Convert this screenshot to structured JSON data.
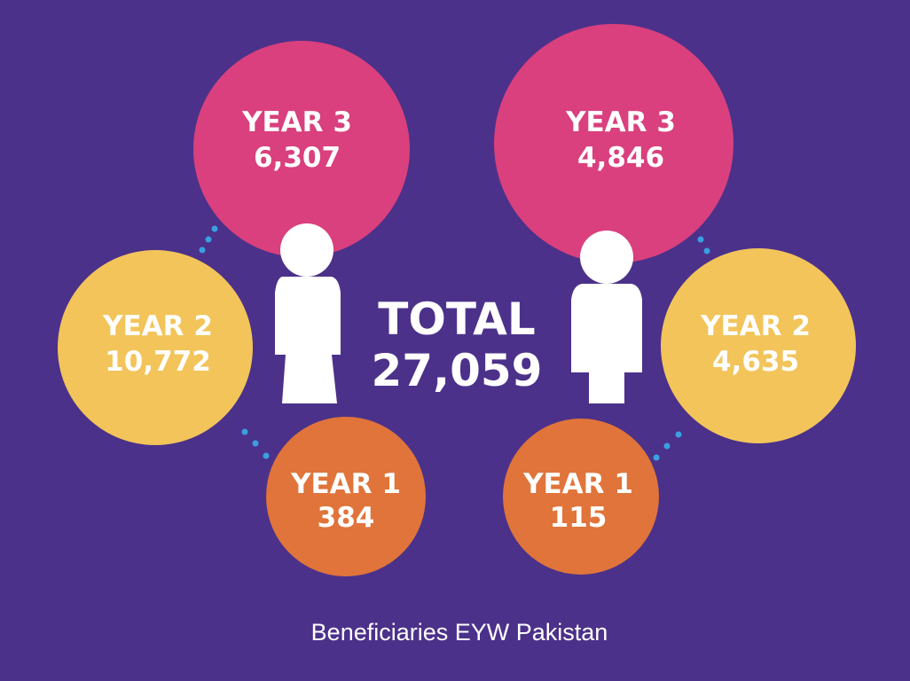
{
  "groups": [
    {
      "circles": [
        {
          "label": "YEAR 3",
          "value": "6,307"
        },
        {
          "label": "YEAR 2",
          "value": "10,772"
        },
        {
          "label": "YEAR 1",
          "value": "384"
        }
      ]
    },
    {
      "circles": [
        {
          "label": "YEAR 3",
          "value": "4,846"
        },
        {
          "label": "YEAR 2",
          "value": "4,635"
        },
        {
          "label": "YEAR 1",
          "value": "115"
        }
      ]
    }
  ],
  "total": {
    "label": "TOTAL",
    "value": "27,059"
  },
  "caption": "Beneficiaries EYW Pakistan"
}
